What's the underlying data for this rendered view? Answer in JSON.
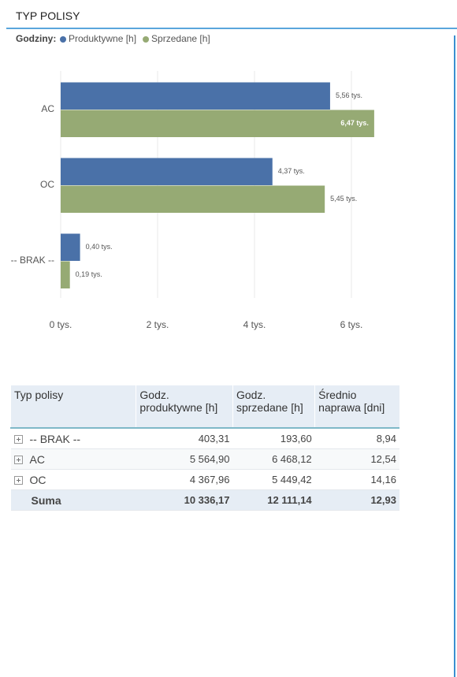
{
  "header": {
    "title": "TYP POLISY"
  },
  "chart_data": {
    "type": "hbar",
    "legend_title": "Godziny:",
    "categories": [
      "AC",
      "OC",
      "-- BRAK --"
    ],
    "series": [
      {
        "name": "Produktywne [h]",
        "color": "#4a71a8",
        "values": [
          5.56,
          4.37,
          0.4
        ],
        "value_labels": [
          "5,56 tys.",
          "4,37 tys.",
          "0,40 tys."
        ]
      },
      {
        "name": "Sprzedane [h]",
        "color": "#96aa74",
        "values": [
          6.47,
          5.45,
          0.19
        ],
        "value_labels": [
          "6,47 tys.",
          "5,45 tys.",
          "0,19 tys."
        ]
      }
    ],
    "xlim": [
      0,
      7
    ],
    "xticks": [
      {
        "value": 0,
        "label": "0 tys."
      },
      {
        "value": 2,
        "label": "2 tys."
      },
      {
        "value": 4,
        "label": "4 tys."
      },
      {
        "value": 6,
        "label": "6 tys."
      }
    ],
    "grid": true
  },
  "table": {
    "columns": [
      "Typ polisy",
      "Godz. produktywne [h]",
      "Godz. sprzedane [h]",
      "Średnio naprawa [dni]"
    ],
    "rows": [
      [
        "-- BRAK --",
        "403,31",
        "193,60",
        "8,94"
      ],
      [
        "AC",
        "5 564,90",
        "6 468,12",
        "12,54"
      ],
      [
        "OC",
        "4 367,96",
        "5 449,42",
        "14,16"
      ]
    ],
    "total": [
      "Suma",
      "10 336,17",
      "12 111,14",
      "12,93"
    ]
  }
}
